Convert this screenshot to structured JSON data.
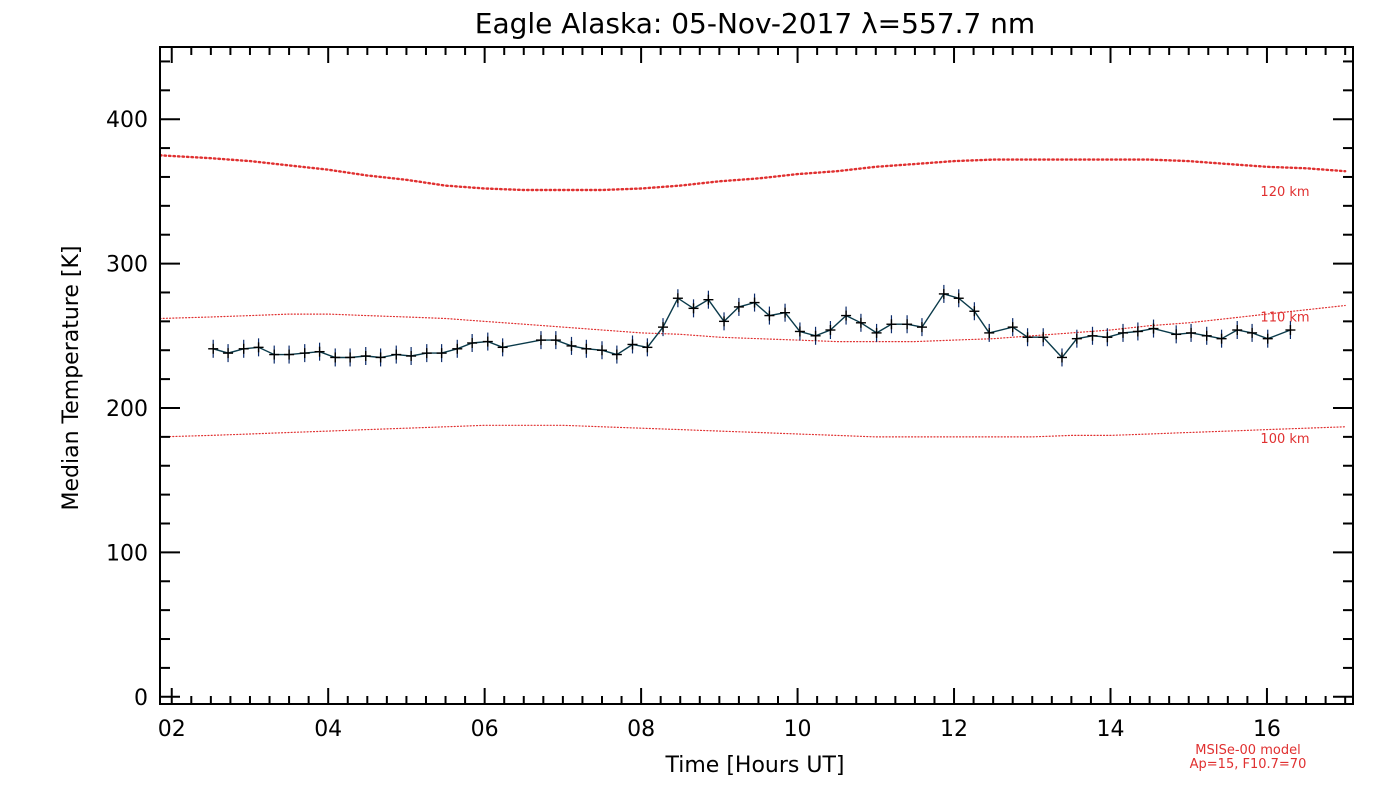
{
  "chart_data": {
    "type": "line",
    "title": "Eagle Alaska: 05-Nov-2017 λ=557.7 nm",
    "xlabel": "Time [Hours UT]",
    "ylabel": "Median Temperature [K]",
    "xlim": [
      1.85,
      17.1
    ],
    "ylim": [
      -5,
      450
    ],
    "x_ticks": [
      2,
      4,
      6,
      8,
      10,
      12,
      14,
      16
    ],
    "x_tick_labels": [
      "02",
      "04",
      "06",
      "08",
      "10",
      "12",
      "14",
      "16"
    ],
    "y_ticks": [
      0,
      100,
      200,
      300,
      400
    ],
    "y_tick_labels": [
      "0",
      "100",
      "200",
      "300",
      "400"
    ],
    "grid": false,
    "series": [
      {
        "kind": "measured",
        "color": "#0a3a4a",
        "x": [
          2.53,
          2.72,
          2.92,
          3.11,
          3.31,
          3.5,
          3.7,
          3.89,
          4.09,
          4.28,
          4.48,
          4.67,
          4.87,
          5.06,
          5.26,
          5.45,
          5.65,
          5.84,
          6.04,
          6.23,
          6.72,
          6.91,
          7.11,
          7.3,
          7.5,
          7.69,
          7.89,
          8.08,
          8.28,
          8.47,
          8.67,
          8.86,
          9.06,
          9.25,
          9.45,
          9.64,
          9.84,
          10.03,
          10.23,
          10.42,
          10.62,
          10.81,
          11.01,
          11.2,
          11.4,
          11.59,
          11.87,
          12.06,
          12.26,
          12.45,
          12.75,
          12.94,
          13.14,
          13.38,
          13.57,
          13.77,
          13.96,
          14.16,
          14.35,
          14.55,
          14.84,
          15.03,
          15.23,
          15.42,
          15.62,
          15.81,
          16.01,
          16.3
        ],
        "y": [
          241,
          238,
          241,
          242,
          237,
          237,
          238,
          239,
          235,
          235,
          236,
          235,
          237,
          236,
          238,
          238,
          241,
          245,
          246,
          242,
          247,
          247,
          243,
          241,
          240,
          237,
          244,
          242,
          256,
          276,
          269,
          275,
          260,
          270,
          273,
          264,
          266,
          253,
          250,
          254,
          264,
          259,
          252,
          258,
          258,
          256,
          279,
          276,
          267,
          252,
          256,
          249,
          249,
          235,
          248,
          250,
          249,
          252,
          253,
          255,
          251,
          252,
          250,
          248,
          254,
          252,
          248,
          254
        ]
      },
      {
        "kind": "model",
        "name": "120 km",
        "color": "#e03030",
        "x": [
          1.85,
          2.5,
          3.0,
          3.5,
          4.0,
          4.5,
          5.0,
          5.5,
          6.0,
          6.5,
          7.0,
          7.5,
          8.0,
          8.5,
          9.0,
          9.5,
          10.0,
          10.5,
          11.0,
          11.5,
          12.0,
          12.5,
          13.0,
          13.5,
          14.0,
          14.5,
          15.0,
          15.5,
          16.0,
          16.5,
          17.0
        ],
        "y": [
          375,
          373,
          371,
          368,
          365,
          361,
          358,
          354,
          352,
          351,
          351,
          351,
          352,
          354,
          357,
          359,
          362,
          364,
          367,
          369,
          371,
          372,
          372,
          372,
          372,
          372,
          371,
          369,
          367,
          366,
          364
        ]
      },
      {
        "kind": "model",
        "name": "110 km",
        "color": "#e03030",
        "x": [
          1.85,
          2.5,
          3.0,
          3.5,
          4.0,
          4.5,
          5.0,
          5.5,
          6.0,
          6.5,
          7.0,
          7.5,
          8.0,
          8.5,
          9.0,
          9.5,
          10.0,
          10.5,
          11.0,
          11.5,
          12.0,
          12.5,
          13.0,
          13.5,
          14.0,
          14.5,
          15.0,
          15.5,
          16.0,
          16.5,
          17.0
        ],
        "y": [
          262,
          263,
          264,
          265,
          265,
          264,
          263,
          262,
          260,
          258,
          256,
          254,
          252,
          251,
          249,
          248,
          247,
          246,
          246,
          246,
          247,
          248,
          250,
          252,
          254,
          257,
          259,
          262,
          265,
          268,
          271
        ]
      },
      {
        "kind": "model",
        "name": "100 km",
        "color": "#e03030",
        "x": [
          1.85,
          2.5,
          3.0,
          3.5,
          4.0,
          4.5,
          5.0,
          5.5,
          6.0,
          6.5,
          7.0,
          7.5,
          8.0,
          8.5,
          9.0,
          9.5,
          10.0,
          10.5,
          11.0,
          11.5,
          12.0,
          12.5,
          13.0,
          13.5,
          14.0,
          14.5,
          15.0,
          15.5,
          16.0,
          16.5,
          17.0
        ],
        "y": [
          180,
          181,
          182,
          183,
          184,
          185,
          186,
          187,
          188,
          188,
          188,
          187,
          186,
          185,
          184,
          183,
          182,
          181,
          180,
          180,
          180,
          180,
          180,
          181,
          181,
          182,
          183,
          184,
          185,
          186,
          187
        ]
      }
    ],
    "annotations": [
      "MSISe-00 model",
      "Ap=15, F10.7=70"
    ]
  }
}
